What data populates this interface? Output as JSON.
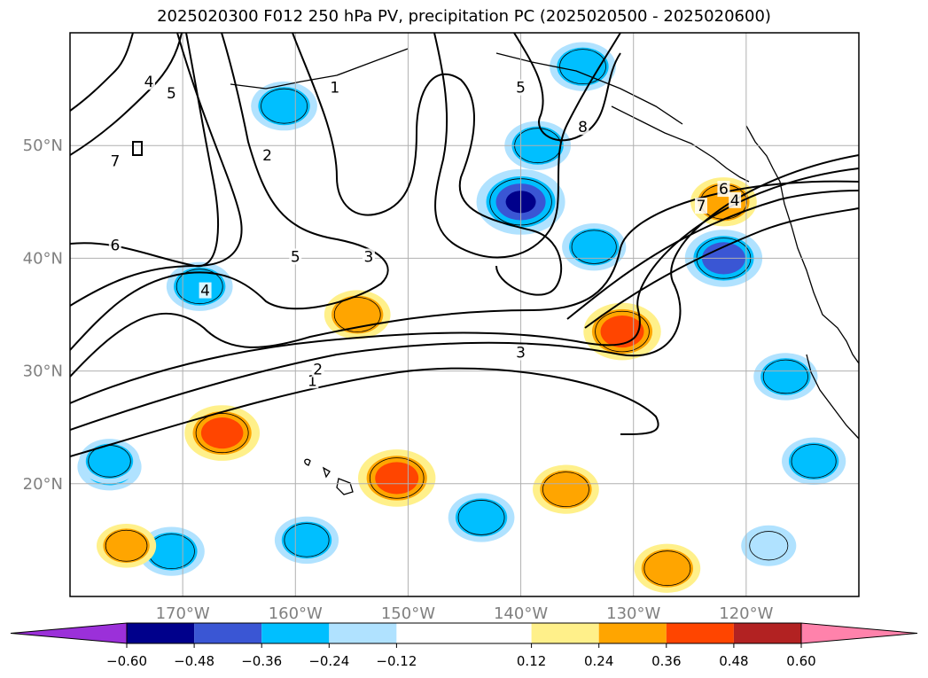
{
  "chart_data": {
    "type": "heatmap",
    "title": "2025020300 F012 250 hPa PV, precipitation PC (2025020500 - 2025020600)",
    "projection": "PlateCarree",
    "lon_range": [
      -180,
      -110
    ],
    "lat_range": [
      10,
      60
    ],
    "grid": true,
    "x_ticks": [
      -170,
      -160,
      -150,
      -140,
      -130,
      -120
    ],
    "x_tick_labels": [
      "170°W",
      "160°W",
      "150°W",
      "140°W",
      "130°W",
      "120°W"
    ],
    "y_ticks": [
      20,
      30,
      40,
      50
    ],
    "y_tick_labels": [
      "20°N",
      "30°N",
      "40°N",
      "50°N"
    ],
    "colorbar": {
      "orientation": "horizontal",
      "extend": "both",
      "boundaries": [
        -0.72,
        -0.6,
        -0.48,
        -0.36,
        -0.24,
        -0.12,
        0.12,
        0.24,
        0.36,
        0.48,
        0.6,
        0.72
      ],
      "colors": [
        "#9b30d9",
        "#00008b",
        "#3a56d4",
        "#00bfff",
        "#b0e2ff",
        "#ffffff",
        "#fff08a",
        "#ffa500",
        "#ff4500",
        "#b22222",
        "#ff82ab"
      ],
      "tick_values": [
        -0.6,
        -0.48,
        -0.36,
        -0.24,
        -0.12,
        0.12,
        0.24,
        0.36,
        0.48,
        0.6
      ],
      "tick_labels": [
        "−0.60",
        "−0.48",
        "−0.36",
        "−0.24",
        "−0.12",
        "0.12",
        "0.24",
        "0.36",
        "0.48",
        "0.60"
      ]
    },
    "contour_labels": [
      {
        "text": "1",
        "lon": -158.5,
        "lat": 29.0
      },
      {
        "text": "2",
        "lon": -158.0,
        "lat": 30.0
      },
      {
        "text": "3",
        "lon": -140.0,
        "lat": 31.5
      },
      {
        "text": "1",
        "lon": -156.5,
        "lat": 55.0
      },
      {
        "text": "2",
        "lon": -162.5,
        "lat": 49.0
      },
      {
        "text": "3",
        "lon": -153.5,
        "lat": 40.0
      },
      {
        "text": "4",
        "lon": -173.0,
        "lat": 55.5
      },
      {
        "text": "5",
        "lon": -171.0,
        "lat": 54.5
      },
      {
        "text": "4",
        "lon": -168.0,
        "lat": 37.0
      },
      {
        "text": "5",
        "lon": -160.0,
        "lat": 40.0
      },
      {
        "text": "6",
        "lon": -176.0,
        "lat": 41.0
      },
      {
        "text": "7",
        "lon": -176.0,
        "lat": 48.5
      },
      {
        "text": "5",
        "lon": -140.0,
        "lat": 55.0
      },
      {
        "text": "8",
        "lon": -134.5,
        "lat": 51.5
      },
      {
        "text": "7",
        "lon": -124.0,
        "lat": 44.5
      },
      {
        "text": "6",
        "lon": -122.0,
        "lat": 46.0
      },
      {
        "text": "4",
        "lon": -121.0,
        "lat": 45.0
      }
    ],
    "precip_anomalies": [
      {
        "lon": -140.0,
        "lat": 45.0,
        "value": -0.5
      },
      {
        "lon": -138.5,
        "lat": 50.0,
        "value": -0.3
      },
      {
        "lon": -134.5,
        "lat": 57.0,
        "value": -0.3
      },
      {
        "lon": -161.0,
        "lat": 53.5,
        "value": -0.3
      },
      {
        "lon": -168.5,
        "lat": 37.5,
        "value": -0.3
      },
      {
        "lon": -122.0,
        "lat": 40.0,
        "value": -0.4
      },
      {
        "lon": -133.5,
        "lat": 41.0,
        "value": -0.28
      },
      {
        "lon": -116.5,
        "lat": 29.5,
        "value": -0.28
      },
      {
        "lon": -176.5,
        "lat": 21.5,
        "value": -0.28
      },
      {
        "lon": -171.0,
        "lat": 14.0,
        "value": -0.3
      },
      {
        "lon": -159.0,
        "lat": 15.0,
        "value": -0.28
      },
      {
        "lon": -143.5,
        "lat": 17.0,
        "value": -0.3
      },
      {
        "lon": -118.0,
        "lat": 14.5,
        "value": -0.2
      },
      {
        "lon": -176.5,
        "lat": 22.0,
        "value": -0.25
      },
      {
        "lon": -114.0,
        "lat": 22.0,
        "value": -0.28
      },
      {
        "lon": -131.0,
        "lat": 33.5,
        "value": 0.4
      },
      {
        "lon": -122.0,
        "lat": 45.0,
        "value": 0.3
      },
      {
        "lon": -151.0,
        "lat": 20.5,
        "value": 0.4
      },
      {
        "lon": -166.5,
        "lat": 24.5,
        "value": 0.38
      },
      {
        "lon": -154.5,
        "lat": 35.0,
        "value": 0.3
      },
      {
        "lon": -136.0,
        "lat": 19.5,
        "value": 0.3
      },
      {
        "lon": -127.0,
        "lat": 12.5,
        "value": 0.3
      },
      {
        "lon": -175.0,
        "lat": 14.5,
        "value": 0.24
      }
    ]
  }
}
